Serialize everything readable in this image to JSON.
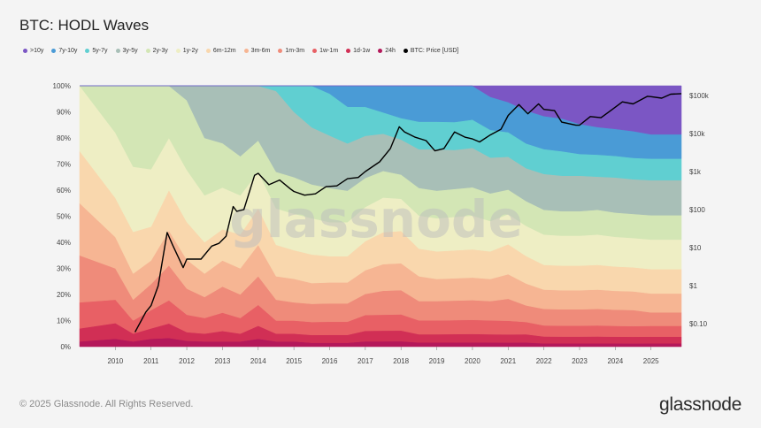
{
  "title": "BTC: HODL Waves",
  "watermark": "glassnode",
  "footer": {
    "copyright": "© 2025 Glassnode. All Rights Reserved.",
    "logo": "glassnode"
  },
  "chart_data": {
    "type": "area",
    "title": "BTC: HODL Waves",
    "stacking": "percent",
    "legend_placement": "top-left",
    "grid": true,
    "x_ticks": [
      "2010",
      "2011",
      "2012",
      "2013",
      "2014",
      "2015",
      "2016",
      "2017",
      "2018",
      "2019",
      "2020",
      "2021",
      "2022",
      "2023",
      "2024",
      "2025"
    ],
    "x_range": [
      2009.0,
      2025.85
    ],
    "left_axis": {
      "range": [
        0,
        100
      ],
      "ticks": [
        "0%",
        "10%",
        "20%",
        "30%",
        "40%",
        "50%",
        "60%",
        "70%",
        "80%",
        "90%",
        "100%"
      ]
    },
    "right_axis": {
      "scale": "log",
      "range": [
        0.025,
        180000
      ],
      "ticks": [
        {
          "label": "$0.10",
          "value": 0.1
        },
        {
          "label": "$1",
          "value": 1
        },
        {
          "label": "$10",
          "value": 10
        },
        {
          "label": "$100",
          "value": 100
        },
        {
          "label": "$1k",
          "value": 1000
        },
        {
          "label": "$10k",
          "value": 10000
        },
        {
          "label": "$100k",
          "value": 100000
        }
      ]
    },
    "x": [
      2009.0,
      2010.0,
      2010.5,
      2011.0,
      2011.5,
      2012.0,
      2012.5,
      2013.0,
      2013.5,
      2014.0,
      2014.5,
      2015.0,
      2015.5,
      2016.0,
      2016.5,
      2017.0,
      2017.5,
      2018.0,
      2018.5,
      2019.0,
      2019.5,
      2020.0,
      2020.5,
      2021.0,
      2021.5,
      2022.0,
      2022.5,
      2023.0,
      2023.5,
      2024.0,
      2024.5,
      2025.0,
      2025.85
    ],
    "series": [
      {
        "name": "24h",
        "color": "#b4185a",
        "values": [
          2,
          3,
          2,
          3,
          3,
          2,
          2,
          2,
          2,
          3,
          2,
          2,
          1.5,
          1.5,
          1.5,
          2,
          2,
          2,
          1.5,
          1.5,
          1.5,
          1.5,
          1.5,
          1.5,
          1.5,
          1.2,
          1.2,
          1.2,
          1.2,
          1.2,
          1.2,
          1.2,
          1.2
        ]
      },
      {
        "name": "1d-1w",
        "color": "#d12f55",
        "values": [
          5,
          6,
          3,
          4,
          5,
          3,
          3,
          4,
          3,
          5,
          3,
          3,
          3,
          3,
          3,
          4,
          4,
          4,
          3,
          3,
          3,
          3,
          3,
          3,
          3,
          2.5,
          2.5,
          2.5,
          2.5,
          2.5,
          2.5,
          2.5,
          2.5
        ]
      },
      {
        "name": "1w-1m",
        "color": "#e86065",
        "values": [
          10,
          9,
          5,
          7,
          8,
          6,
          6,
          7,
          6,
          8,
          5,
          5,
          5,
          5,
          5,
          6,
          6,
          6,
          5,
          5,
          5,
          5,
          5,
          5,
          4.5,
          4,
          4,
          4,
          4,
          4,
          4,
          4,
          4
        ]
      },
      {
        "name": "1m-3m",
        "color": "#ef8b7a",
        "values": [
          18,
          12,
          8,
          10,
          12,
          9,
          8,
          10,
          9,
          11,
          8,
          7,
          7,
          7,
          7,
          8,
          9,
          9,
          7,
          7,
          7,
          7,
          7,
          8,
          6,
          6,
          6,
          6,
          6,
          6,
          6,
          5,
          5
        ]
      },
      {
        "name": "3m-6m",
        "color": "#f6b593",
        "values": [
          20,
          12,
          10,
          9,
          12,
          10,
          9,
          10,
          10,
          12,
          9,
          9,
          8,
          8,
          8,
          9,
          10,
          10,
          9,
          8,
          8,
          8,
          8,
          9,
          8,
          7,
          7,
          7,
          7,
          7,
          7,
          7,
          7
        ]
      },
      {
        "name": "6m-12m",
        "color": "#f9d7ad",
        "values": [
          20,
          15,
          16,
          13,
          14,
          13,
          12,
          12,
          13,
          14,
          12,
          11,
          11,
          10,
          10,
          11,
          12,
          12,
          10,
          10,
          10,
          10,
          10,
          11,
          10,
          9,
          9,
          9,
          9,
          9,
          9,
          9,
          9
        ]
      },
      {
        "name": "1y-2y",
        "color": "#eeeec4",
        "values": [
          25,
          25,
          25,
          22,
          18,
          18,
          18,
          16,
          15,
          14,
          14,
          14,
          14,
          13,
          13,
          13,
          13,
          12,
          12,
          12,
          12,
          12,
          11,
          11,
          11,
          11,
          11,
          11,
          11,
          11,
          11,
          11,
          11
        ]
      },
      {
        "name": "2y-3y",
        "color": "#d3e6b5",
        "values": [
          0,
          18,
          31,
          32,
          18,
          24,
          22,
          17,
          15,
          12,
          14,
          14,
          13,
          13,
          12,
          11,
          10,
          9,
          10,
          10,
          10,
          10,
          10,
          9,
          9,
          9,
          9,
          9,
          9,
          9,
          9,
          9,
          9
        ]
      },
      {
        "name": "3y-5y",
        "color": "#a8bfb7",
        "values": [
          0,
          0,
          0,
          0,
          0,
          5,
          20,
          22,
          27,
          21,
          31,
          25,
          22,
          20,
          18,
          16,
          14,
          13,
          14,
          15,
          14,
          14,
          13,
          12,
          12,
          13,
          13,
          13,
          12,
          13,
          13,
          13,
          13
        ]
      },
      {
        "name": "5y-7y",
        "color": "#60cfd1",
        "values": [
          0,
          0,
          0,
          0,
          0,
          0,
          0,
          0,
          0,
          0,
          2,
          10,
          16,
          16,
          14,
          11,
          8,
          8,
          10,
          10,
          10,
          10,
          10,
          9,
          9,
          9,
          9,
          8,
          8,
          8,
          8,
          8,
          8
        ]
      },
      {
        "name": "7y-10y",
        "color": "#4a9bd6",
        "values": [
          0,
          0,
          0,
          0,
          0,
          0,
          0,
          0,
          0,
          0,
          0,
          0,
          0,
          3,
          8,
          8,
          10,
          12,
          13,
          13,
          13,
          12,
          12,
          11,
          12,
          12,
          12,
          11,
          10,
          10,
          10,
          9,
          9
        ]
      },
      {
        "name": ">10y",
        "color": "#7b56c4",
        "values": [
          0,
          0,
          0,
          0,
          0,
          0,
          0,
          0,
          0,
          0,
          0,
          0,
          0,
          0,
          0,
          0,
          0,
          0,
          0,
          0,
          0,
          0,
          4,
          6,
          9,
          11,
          12,
          14,
          15,
          16,
          17,
          18,
          18
        ]
      }
    ],
    "price_series": {
      "name": "BTC: Price [USD]",
      "color": "#000000",
      "axis": "right",
      "x": [
        2010.55,
        2010.85,
        2011.0,
        2011.2,
        2011.45,
        2011.6,
        2011.9,
        2012.0,
        2012.4,
        2012.7,
        2012.9,
        2013.1,
        2013.3,
        2013.4,
        2013.6,
        2013.9,
        2014.0,
        2014.3,
        2014.6,
        2014.9,
        2015.0,
        2015.3,
        2015.6,
        2015.9,
        2016.2,
        2016.5,
        2016.8,
        2017.0,
        2017.4,
        2017.7,
        2017.95,
        2018.1,
        2018.4,
        2018.7,
        2018.95,
        2019.2,
        2019.5,
        2019.8,
        2020.0,
        2020.2,
        2020.5,
        2020.8,
        2021.0,
        2021.3,
        2021.55,
        2021.85,
        2022.0,
        2022.3,
        2022.5,
        2022.9,
        2023.0,
        2023.3,
        2023.6,
        2023.9,
        2024.2,
        2024.5,
        2024.9,
        2025.0,
        2025.3,
        2025.55,
        2025.85
      ],
      "values": [
        0.06,
        0.2,
        0.3,
        1,
        25,
        12,
        3,
        5,
        5,
        11,
        13,
        20,
        120,
        90,
        100,
        800,
        900,
        450,
        600,
        350,
        300,
        240,
        260,
        400,
        420,
        650,
        700,
        1000,
        1800,
        4000,
        15000,
        11000,
        8000,
        6500,
        3500,
        4000,
        11000,
        8000,
        7200,
        6000,
        9200,
        13000,
        30000,
        58000,
        33000,
        60000,
        43000,
        40000,
        20000,
        16500,
        16600,
        28000,
        26000,
        42000,
        68000,
        60000,
        95000,
        93000,
        85000,
        108000,
        112000
      ]
    }
  }
}
